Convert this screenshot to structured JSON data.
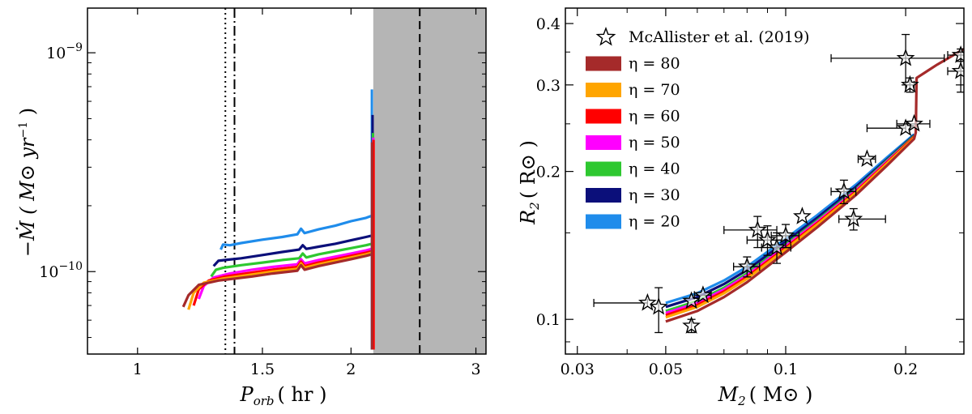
{
  "chart_data": [
    {
      "type": "line",
      "panel": "left",
      "xlabel": "P_orb ( hr )",
      "xlabel_main": "P",
      "xlabel_sub": "orb",
      "xlabel_unit": "( hr )",
      "ylabel": "−Ṁ ( M⊙ yr⁻¹ )",
      "ylabel_text": "−Ṁ ( M⊙ yr",
      "ylabel_sup": "−1",
      "ylabel_close": " )",
      "xscale": "log",
      "yscale": "log",
      "xlim": [
        0.85,
        3.1
      ],
      "ylim": [
        4.2e-11,
        1.6e-09
      ],
      "x_ticks": [
        1,
        1.5,
        2,
        3
      ],
      "x_tick_labels": [
        "1",
        "1.5",
        "2",
        "3"
      ],
      "y_ticks": [
        1e-10,
        1e-09
      ],
      "y_tick_labels": [
        "10⁻¹⁰",
        "10⁻⁹"
      ],
      "y_tick_base": "10",
      "y_tick_exps": [
        "−10",
        "−9"
      ],
      "period_gap_shaded": [
        2.15,
        3.1
      ],
      "vlines": [
        {
          "x": 1.33,
          "style": "dotted"
        },
        {
          "x": 1.37,
          "style": "dashdot"
        },
        {
          "x": 2.5,
          "style": "dashed"
        }
      ],
      "series": [
        {
          "name": "η = 20",
          "color": "#1f8ceb",
          "x": [
            1.31,
            1.32,
            1.35,
            1.4,
            1.5,
            1.6,
            1.68,
            1.7,
            1.72,
            1.8,
            1.9,
            2.0,
            2.1,
            2.14
          ],
          "y": [
            1.26e-10,
            1.33e-10,
            1.32e-10,
            1.35e-10,
            1.4e-10,
            1.44e-10,
            1.48e-10,
            1.57e-10,
            1.5e-10,
            1.56e-10,
            1.62e-10,
            1.7e-10,
            1.76e-10,
            1.8e-10
          ]
        },
        {
          "name": "η = 30",
          "color": "#0b0f7a",
          "x": [
            1.28,
            1.3,
            1.33,
            1.4,
            1.5,
            1.6,
            1.69,
            1.71,
            1.73,
            1.8,
            1.9,
            2.0,
            2.1,
            2.14
          ],
          "y": [
            1.06e-10,
            1.12e-10,
            1.13e-10,
            1.15e-10,
            1.19e-10,
            1.23e-10,
            1.26e-10,
            1.32e-10,
            1.27e-10,
            1.3e-10,
            1.34e-10,
            1.39e-10,
            1.44e-10,
            1.46e-10
          ]
        },
        {
          "name": "η = 40",
          "color": "#2ec830",
          "x": [
            1.27,
            1.29,
            1.32,
            1.4,
            1.5,
            1.6,
            1.69,
            1.71,
            1.73,
            1.8,
            1.9,
            2.0,
            2.1,
            2.14
          ],
          "y": [
            9.5e-11,
            1.02e-10,
            1.04e-10,
            1.07e-10,
            1.1e-10,
            1.13e-10,
            1.15e-10,
            1.21e-10,
            1.16e-10,
            1.2e-10,
            1.24e-10,
            1.28e-10,
            1.32e-10,
            1.34e-10
          ]
        },
        {
          "name": "η = 50",
          "color": "#ff00ff",
          "x": [
            1.22,
            1.24,
            1.28,
            1.35,
            1.45,
            1.55,
            1.68,
            1.7,
            1.72,
            1.8,
            1.9,
            2.0,
            2.1,
            2.14
          ],
          "y": [
            7.5e-11,
            8.6e-11,
            9.4e-11,
            9.8e-11,
            1.02e-10,
            1.05e-10,
            1.08e-10,
            1.14e-10,
            1.09e-10,
            1.13e-10,
            1.17e-10,
            1.21e-10,
            1.25e-10,
            1.27e-10
          ]
        },
        {
          "name": "η = 60",
          "color": "#ff0000",
          "x": [
            1.2,
            1.22,
            1.26,
            1.33,
            1.45,
            1.55,
            1.68,
            1.7,
            1.72,
            1.8,
            1.9,
            2.0,
            2.1,
            2.14
          ],
          "y": [
            7e-11,
            8.3e-11,
            9.1e-11,
            9.5e-11,
            9.9e-11,
            1.02e-10,
            1.05e-10,
            1.11e-10,
            1.06e-10,
            1.1e-10,
            1.14e-10,
            1.18e-10,
            1.22e-10,
            1.24e-10
          ]
        },
        {
          "name": "η = 70",
          "color": "#ffa500",
          "x": [
            1.18,
            1.2,
            1.24,
            1.32,
            1.45,
            1.55,
            1.68,
            1.7,
            1.72,
            1.8,
            1.9,
            2.0,
            2.1,
            2.14
          ],
          "y": [
            6.7e-11,
            8e-11,
            8.9e-11,
            9.3e-11,
            9.7e-11,
            1e-10,
            1.03e-10,
            1.09e-10,
            1.04e-10,
            1.08e-10,
            1.12e-10,
            1.16e-10,
            1.2e-10,
            1.22e-10
          ]
        },
        {
          "name": "η = 80",
          "color": "#a52a2a",
          "x": [
            1.16,
            1.18,
            1.22,
            1.3,
            1.45,
            1.55,
            1.68,
            1.7,
            1.72,
            1.8,
            1.9,
            2.0,
            2.1,
            2.14
          ],
          "y": [
            6.9e-11,
            7.8e-11,
            8.7e-11,
            9.1e-11,
            9.5e-11,
            9.8e-11,
            1.01e-10,
            1.07e-10,
            1.02e-10,
            1.06e-10,
            1.1e-10,
            1.14e-10,
            1.18e-10,
            1.2e-10
          ]
        }
      ],
      "spikes": [
        {
          "color": "#1f8ceb",
          "x": 2.14,
          "y": [
            4.4e-11,
            6.8e-10
          ]
        },
        {
          "color": "#0b0f7a",
          "x": 2.145,
          "y": [
            4.4e-11,
            5.2e-10
          ]
        },
        {
          "color": "#2ec830",
          "x": 2.148,
          "y": [
            4.4e-11,
            4.3e-10
          ]
        },
        {
          "color": "#ff00ff",
          "x": 2.15,
          "y": [
            4.4e-11,
            4.1e-10
          ]
        },
        {
          "color": "#ff0000",
          "x": 2.152,
          "y": [
            4.4e-11,
            4e-10
          ]
        },
        {
          "color": "#a52a2a",
          "x": 2.141,
          "y": [
            4.4e-11,
            3.9e-10
          ]
        }
      ]
    },
    {
      "type": "line+scatter",
      "panel": "right",
      "xlabel": "M_2 ( M⊙ )",
      "xlabel_main": "M",
      "xlabel_sub": "2",
      "xlabel_unit": "( M⊙ )",
      "ylabel": "R_2 ( R⊙ )",
      "ylabel_main": "R",
      "ylabel_sub": "2",
      "ylabel_unit": "( R⊙ )",
      "xscale": "log",
      "yscale": "log",
      "xlim": [
        0.028,
        0.28
      ],
      "ylim": [
        0.085,
        0.43
      ],
      "x_ticks": [
        0.03,
        0.05,
        0.1,
        0.2
      ],
      "x_tick_labels": [
        "0.03",
        "0.05",
        "0.1",
        "0.2"
      ],
      "y_ticks": [
        0.1,
        0.2,
        0.3,
        0.4
      ],
      "y_tick_labels": [
        "0.1",
        "0.2",
        "0.3",
        "0.4"
      ],
      "legend": {
        "placement": "top-left",
        "entries": [
          "McAllister et al. (2019)",
          "η = 80",
          "η = 70",
          "η = 60",
          "η = 50",
          "η = 40",
          "η = 30",
          "η = 20"
        ],
        "colors": [
          "#000000",
          "#a52a2a",
          "#ffa500",
          "#ff0000",
          "#ff00ff",
          "#2ec830",
          "#0b0f7a",
          "#1f8ceb"
        ]
      },
      "series": [
        {
          "name": "η = 20",
          "color": "#1f8ceb",
          "x": [
            0.05,
            0.06,
            0.07,
            0.08,
            0.1,
            0.12,
            0.15,
            0.18,
            0.21
          ],
          "y": [
            0.108,
            0.113,
            0.12,
            0.128,
            0.146,
            0.163,
            0.188,
            0.214,
            0.238
          ]
        },
        {
          "name": "η = 30",
          "color": "#0b0f7a",
          "x": [
            0.05,
            0.06,
            0.07,
            0.08,
            0.1,
            0.12,
            0.15,
            0.18,
            0.21
          ],
          "y": [
            0.106,
            0.111,
            0.118,
            0.126,
            0.144,
            0.161,
            0.186,
            0.212,
            0.237
          ]
        },
        {
          "name": "η = 40",
          "color": "#2ec830",
          "x": [
            0.05,
            0.06,
            0.07,
            0.08,
            0.1,
            0.12,
            0.15,
            0.18,
            0.21
          ],
          "y": [
            0.104,
            0.109,
            0.116,
            0.124,
            0.142,
            0.159,
            0.184,
            0.211,
            0.236
          ]
        },
        {
          "name": "η = 50",
          "color": "#ff00ff",
          "x": [
            0.05,
            0.06,
            0.07,
            0.08,
            0.1,
            0.12,
            0.15,
            0.18,
            0.21
          ],
          "y": [
            0.103,
            0.108,
            0.115,
            0.123,
            0.141,
            0.158,
            0.183,
            0.21,
            0.235
          ]
        },
        {
          "name": "η = 60",
          "color": "#ff0000",
          "x": [
            0.05,
            0.06,
            0.07,
            0.08,
            0.1,
            0.12,
            0.15,
            0.18,
            0.21
          ],
          "y": [
            0.102,
            0.107,
            0.114,
            0.122,
            0.14,
            0.157,
            0.182,
            0.209,
            0.235
          ]
        },
        {
          "name": "η = 70",
          "color": "#ffa500",
          "x": [
            0.05,
            0.06,
            0.07,
            0.08,
            0.1,
            0.12,
            0.15,
            0.18,
            0.21
          ],
          "y": [
            0.101,
            0.106,
            0.113,
            0.121,
            0.139,
            0.156,
            0.181,
            0.208,
            0.234
          ]
        },
        {
          "name": "η = 80",
          "color": "#a52a2a",
          "x": [
            0.05,
            0.06,
            0.07,
            0.08,
            0.1,
            0.12,
            0.15,
            0.18,
            0.21,
            0.212,
            0.213,
            0.24,
            0.28
          ],
          "y": [
            0.099,
            0.104,
            0.111,
            0.119,
            0.137,
            0.154,
            0.179,
            0.206,
            0.233,
            0.24,
            0.31,
            0.33,
            0.355
          ]
        }
      ],
      "observations": [
        {
          "x": 0.045,
          "y": 0.108,
          "xerr": [
            0.012,
            0.0
          ],
          "yerr": [
            0.0,
            0.0
          ]
        },
        {
          "x": 0.048,
          "y": 0.106,
          "xerr": [
            0.0,
            0.0
          ],
          "yerr": [
            0.012,
            0.01
          ]
        },
        {
          "x": 0.058,
          "y": 0.109,
          "xerr": [
            0.0,
            0.0
          ],
          "yerr": [
            0.0,
            0.0
          ]
        },
        {
          "x": 0.062,
          "y": 0.112,
          "xerr": [
            0.003,
            0.003
          ],
          "yerr": [
            0.0,
            0.0
          ]
        },
        {
          "x": 0.058,
          "y": 0.097,
          "xerr": [
            0.0,
            0.0
          ],
          "yerr": [
            0.003,
            0.003
          ]
        },
        {
          "x": 0.085,
          "y": 0.152,
          "xerr": [
            0.015,
            0.01
          ],
          "yerr": [
            0.012,
            0.01
          ]
        },
        {
          "x": 0.09,
          "y": 0.145,
          "xerr": [
            0.01,
            0.01
          ],
          "yerr": [
            0.01,
            0.01
          ]
        },
        {
          "x": 0.095,
          "y": 0.14,
          "xerr": [
            0.008,
            0.008
          ],
          "yerr": [
            0.01,
            0.01
          ]
        },
        {
          "x": 0.1,
          "y": 0.148,
          "xerr": [
            0.008,
            0.008
          ],
          "yerr": [
            0.008,
            0.008
          ]
        },
        {
          "x": 0.08,
          "y": 0.128,
          "xerr": [
            0.006,
            0.006
          ],
          "yerr": [
            0.006,
            0.006
          ]
        },
        {
          "x": 0.11,
          "y": 0.162,
          "xerr": [
            0.0,
            0.0
          ],
          "yerr": [
            0.0,
            0.0
          ]
        },
        {
          "x": 0.14,
          "y": 0.182,
          "xerr": [
            0.01,
            0.01
          ],
          "yerr": [
            0.01,
            0.01
          ]
        },
        {
          "x": 0.148,
          "y": 0.16,
          "xerr": [
            0.012,
            0.03
          ],
          "yerr": [
            0.008,
            0.008
          ]
        },
        {
          "x": 0.16,
          "y": 0.212,
          "xerr": [
            0.008,
            0.008
          ],
          "yerr": [
            0.0,
            0.0
          ]
        },
        {
          "x": 0.2,
          "y": 0.245,
          "xerr": [
            0.04,
            0.0
          ],
          "yerr": [
            0.0,
            0.0
          ]
        },
        {
          "x": 0.21,
          "y": 0.25,
          "xerr": [
            0.02,
            0.02
          ],
          "yerr": [
            0.0,
            0.0
          ]
        },
        {
          "x": 0.2,
          "y": 0.34,
          "xerr": [
            0.07,
            0.05
          ],
          "yerr": [
            0.04,
            0.04
          ]
        },
        {
          "x": 0.205,
          "y": 0.3,
          "xerr": [
            0.005,
            0.005
          ],
          "yerr": [
            0.01,
            0.01
          ]
        },
        {
          "x": 0.275,
          "y": 0.32,
          "xerr": [
            0.02,
            0.02
          ],
          "yerr": [
            0.03,
            0.03
          ]
        },
        {
          "x": 0.275,
          "y": 0.345,
          "xerr": [
            0.02,
            0.02
          ],
          "yerr": [
            0.01,
            0.01
          ]
        }
      ]
    }
  ]
}
